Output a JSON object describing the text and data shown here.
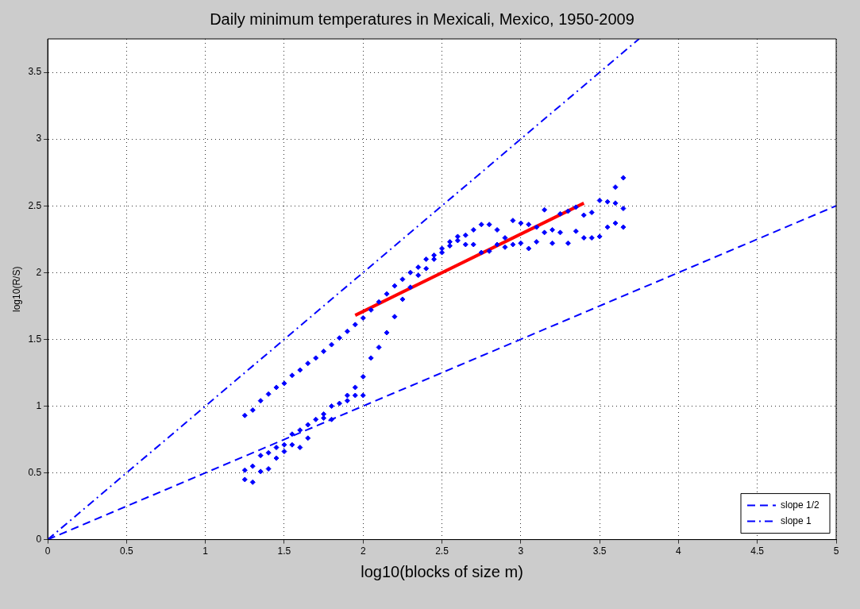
{
  "chart_data": {
    "type": "scatter",
    "title": "Daily minimum temperatures in Mexicali, Mexico, 1950-2009",
    "xlabel": "log10(blocks of size m)",
    "ylabel": "log10(R/S)",
    "xlim": [
      0,
      5
    ],
    "xticks": [
      0,
      0.5,
      1,
      1.5,
      2,
      2.5,
      3,
      3.5,
      4,
      4.5,
      5
    ],
    "ylim": [
      0,
      3.75
    ],
    "yticks": [
      0,
      0.5,
      1,
      1.5,
      2,
      2.5,
      3,
      3.5
    ],
    "grid": true,
    "legend": "bottom right",
    "series": [
      {
        "color": "#0000ff",
        "marker": "diamond",
        "x": [
          1.25,
          1.25,
          1.25,
          1.3,
          1.3,
          1.3,
          1.35,
          1.35,
          1.35,
          1.4,
          1.4,
          1.4,
          1.45,
          1.45,
          1.45,
          1.5,
          1.5,
          1.5,
          1.55,
          1.55,
          1.55,
          1.6,
          1.6,
          1.6,
          1.65,
          1.65,
          1.65,
          1.7,
          1.7,
          1.75,
          1.75,
          1.75,
          1.8,
          1.8,
          1.8,
          1.85,
          1.85,
          1.9,
          1.9,
          1.9,
          1.95,
          1.95,
          1.95,
          2,
          2,
          2,
          2.05,
          2.05,
          2.1,
          2.1,
          2.15,
          2.15,
          2.2,
          2.2,
          2.25,
          2.25,
          2.3,
          2.3,
          2.35,
          2.35,
          2.4,
          2.4,
          2.45,
          2.45,
          2.5,
          2.5,
          2.55,
          2.55,
          2.6,
          2.6,
          2.65,
          2.65,
          2.7,
          2.7,
          2.75,
          2.75,
          2.8,
          2.8,
          2.85,
          2.85,
          2.9,
          2.9,
          2.95,
          2.95,
          3,
          3,
          3.05,
          3.05,
          3.1,
          3.1,
          3.15,
          3.15,
          3.2,
          3.2,
          3.25,
          3.25,
          3.3,
          3.3,
          3.35,
          3.35,
          3.4,
          3.4,
          3.45,
          3.45,
          3.5,
          3.5,
          3.55,
          3.55,
          3.6,
          3.6,
          3.6,
          3.65,
          3.65,
          3.65
        ],
        "values": [
          0.93,
          0.52,
          0.45,
          0.97,
          0.55,
          0.43,
          1.04,
          0.63,
          0.51,
          1.09,
          0.65,
          0.53,
          1.14,
          0.69,
          0.61,
          1.17,
          0.71,
          0.66,
          1.23,
          0.79,
          0.71,
          1.27,
          0.82,
          0.69,
          1.32,
          0.86,
          0.76,
          1.36,
          0.9,
          1.41,
          0.94,
          0.91,
          1.46,
          1.0,
          0.9,
          1.51,
          1.02,
          1.56,
          1.08,
          1.04,
          1.61,
          1.14,
          1.08,
          1.66,
          1.22,
          1.08,
          1.72,
          1.36,
          1.78,
          1.44,
          1.84,
          1.55,
          1.9,
          1.67,
          1.95,
          1.8,
          2.0,
          1.89,
          2.04,
          1.98,
          2.1,
          2.03,
          2.13,
          2.1,
          2.18,
          2.15,
          2.23,
          2.2,
          2.27,
          2.24,
          2.28,
          2.21,
          2.32,
          2.21,
          2.36,
          2.15,
          2.36,
          2.16,
          2.32,
          2.21,
          2.26,
          2.19,
          2.39,
          2.21,
          2.37,
          2.22,
          2.36,
          2.18,
          2.34,
          2.23,
          2.47,
          2.3,
          2.32,
          2.22,
          2.44,
          2.3,
          2.46,
          2.22,
          2.49,
          2.31,
          2.43,
          2.26,
          2.45,
          2.26,
          2.54,
          2.27,
          2.53,
          2.34,
          2.52,
          2.37,
          2.64,
          2.48,
          2.34,
          2.71
        ]
      },
      {
        "type": "line",
        "color": "#ff0000",
        "line_style": "solid",
        "x": [
          1.95,
          3.4
        ],
        "values": [
          1.68,
          2.52
        ]
      },
      {
        "type": "line",
        "name": "slope 1/2",
        "color": "#0000ff",
        "line_style": "dashed",
        "x": [
          0,
          5
        ],
        "values": [
          0,
          2.5
        ]
      },
      {
        "type": "line",
        "name": "slope 1",
        "color": "#0000ff",
        "line_style": "dashdot",
        "x": [
          0,
          3.75
        ],
        "values": [
          0,
          3.75
        ]
      }
    ]
  }
}
